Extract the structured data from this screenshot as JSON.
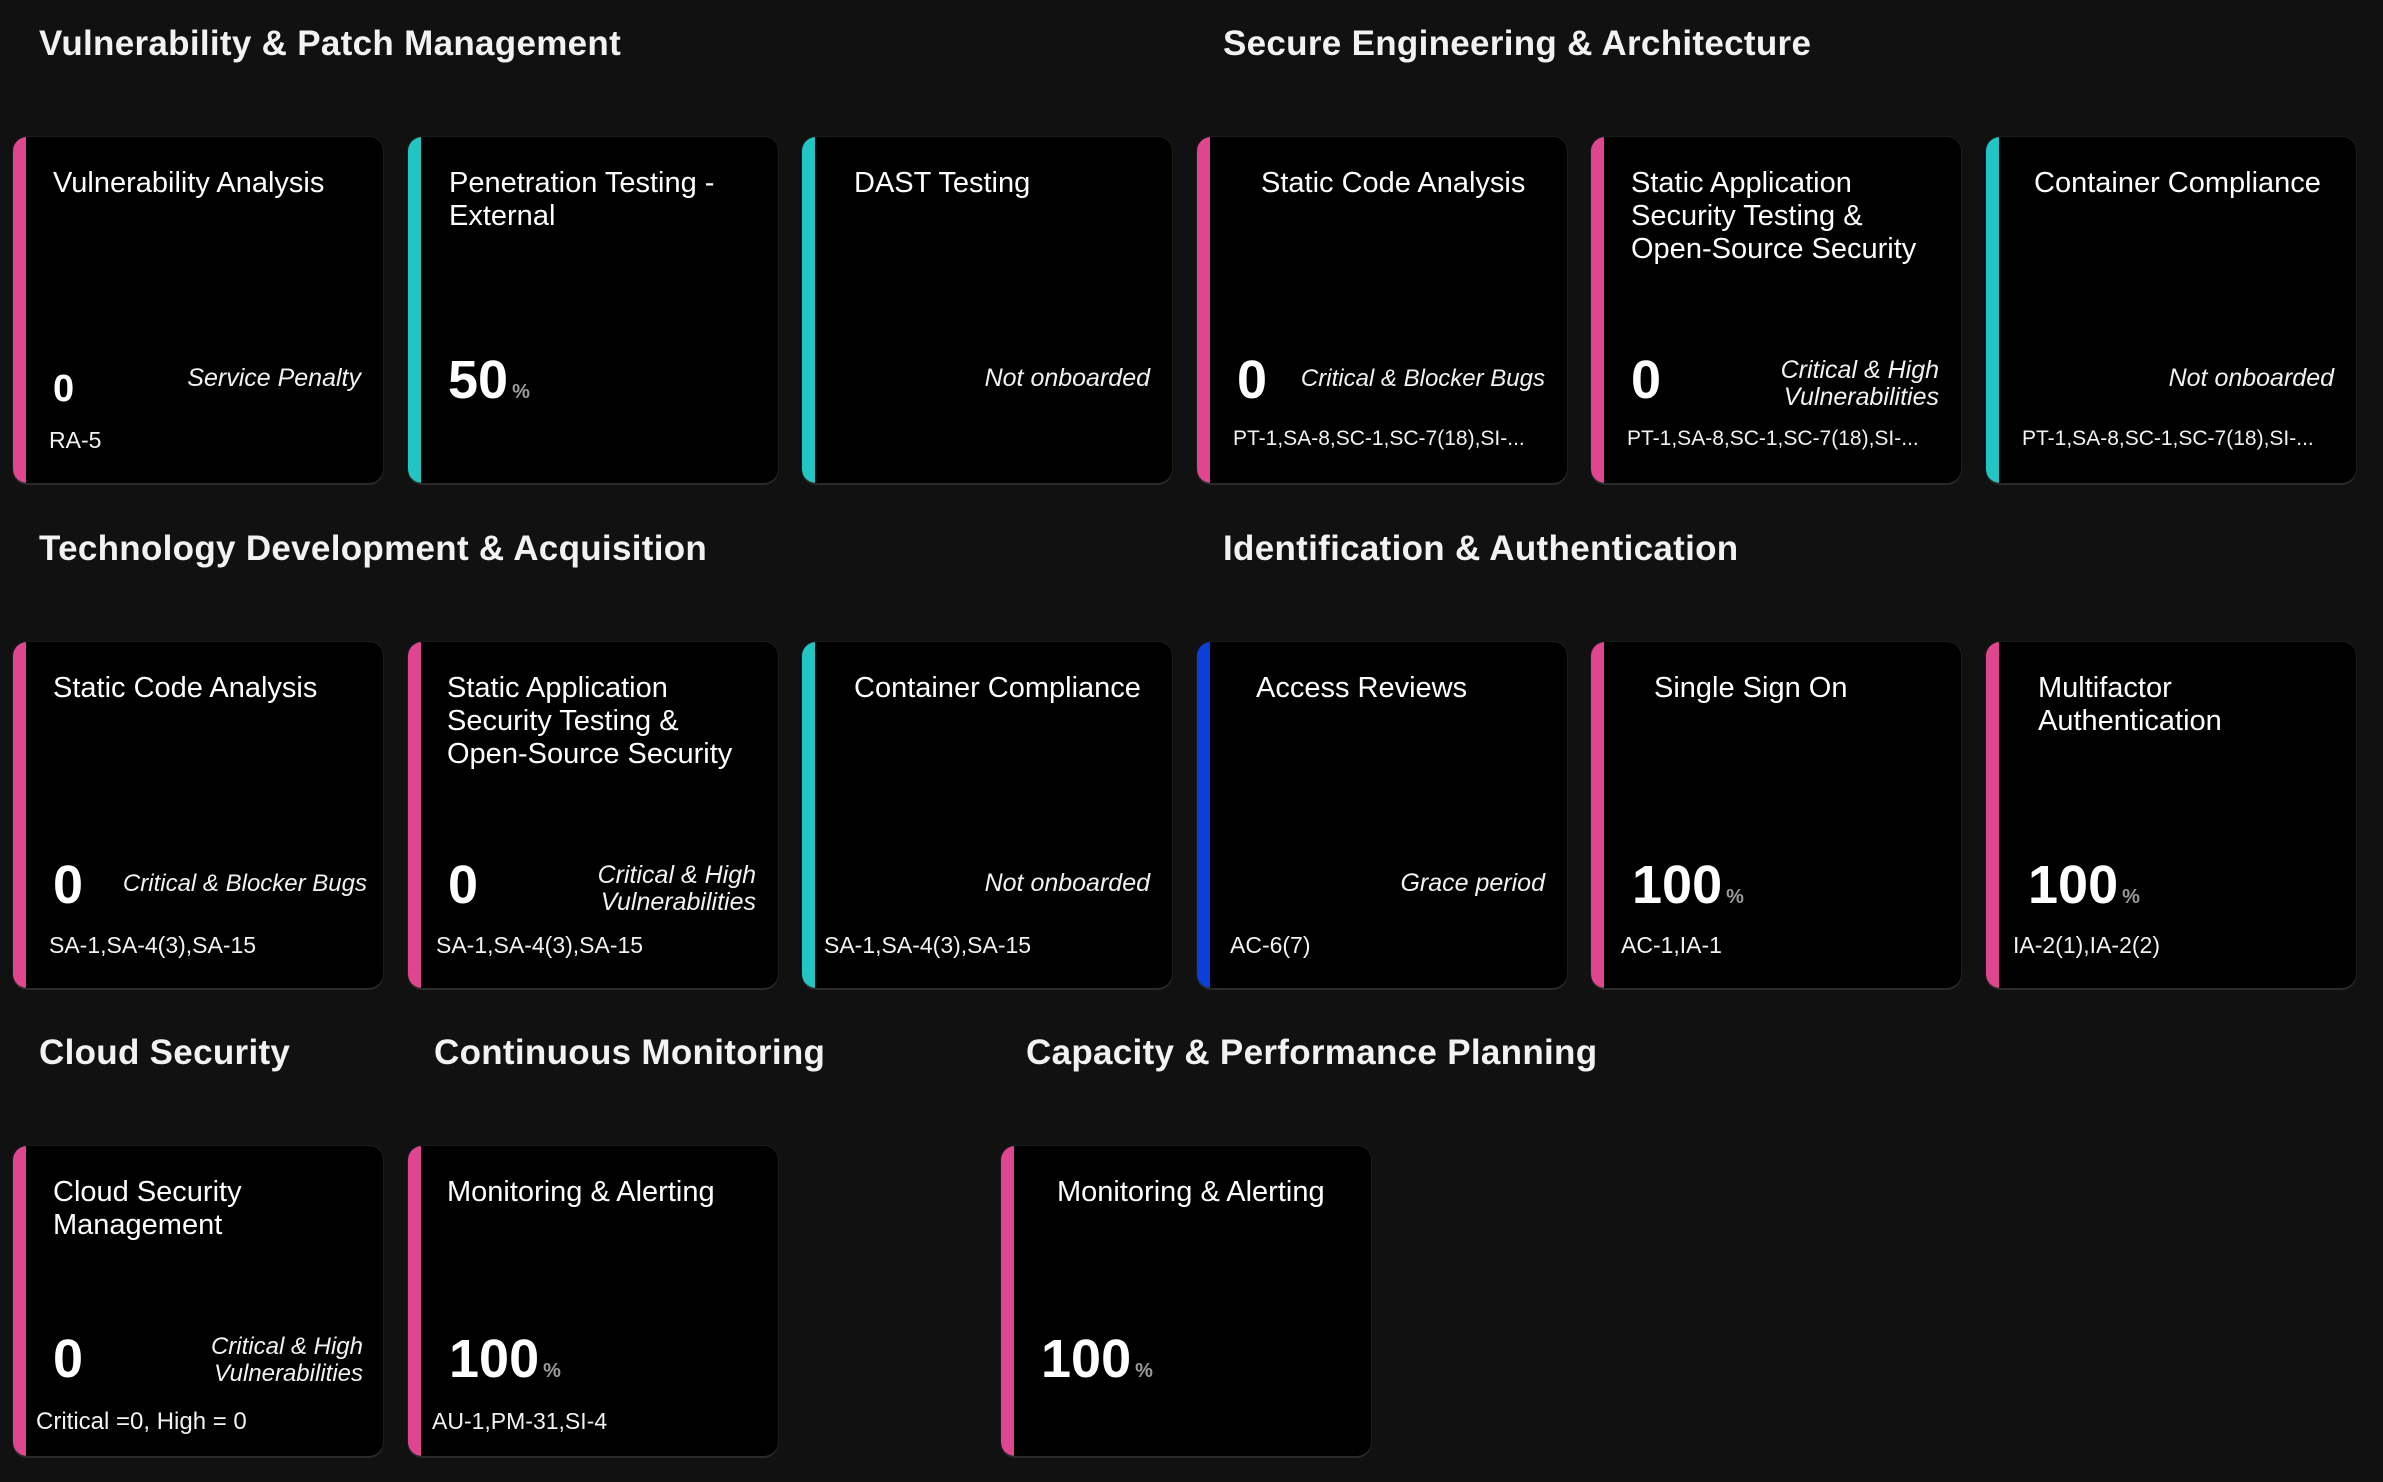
{
  "colors": {
    "pink": "#e0468f",
    "teal": "#22c4c4",
    "blue": "#0a3fd8",
    "background": "#111111",
    "card": "#000000"
  },
  "sections": {
    "vuln": "Vulnerability & Patch Management",
    "secure_eng": "Secure Engineering & Architecture",
    "tech_dev": "Technology Development & Acquisition",
    "ident": "Identification & Authentication",
    "cloud": "Cloud Security",
    "monitoring": "Continuous Monitoring",
    "capacity": "Capacity & Performance Planning"
  },
  "cards": {
    "c1": {
      "title": "Vulnerability Analysis",
      "value": "0",
      "status": "Service Penalty",
      "controls": "RA-5",
      "accent": "pink"
    },
    "c2": {
      "title": "Penetration Testing - External",
      "value": "50",
      "unit": "%",
      "controls": "",
      "accent": "teal"
    },
    "c3": {
      "title": "DAST Testing",
      "status": "Not onboarded",
      "controls": "",
      "accent": "teal"
    },
    "c4": {
      "title": "Static Code Analysis",
      "value": "0",
      "status": "Critical & Blocker Bugs",
      "controls": "PT-1,SA-8,SC-1,SC-7(18),SI-...",
      "accent": "pink"
    },
    "c5": {
      "title": "Static Application Security Testing & Open-Source Security",
      "value": "0",
      "status_line1": "Critical & High",
      "status_line2": "Vulnerabilities",
      "controls": "PT-1,SA-8,SC-1,SC-7(18),SI-...",
      "accent": "pink"
    },
    "c6": {
      "title": "Container Compliance",
      "status": "Not onboarded",
      "controls": "PT-1,SA-8,SC-1,SC-7(18),SI-...",
      "accent": "teal"
    },
    "c7": {
      "title": "Static Code Analysis",
      "value": "0",
      "status": "Critical & Blocker Bugs",
      "controls": "SA-1,SA-4(3),SA-15",
      "accent": "pink"
    },
    "c8": {
      "title": "Static Application Security Testing & Open-Source Security",
      "value": "0",
      "status_line1": "Critical & High",
      "status_line2": "Vulnerabilities",
      "controls": "SA-1,SA-4(3),SA-15",
      "accent": "pink"
    },
    "c9": {
      "title": "Container Compliance",
      "status": "Not onboarded",
      "controls": "SA-1,SA-4(3),SA-15",
      "accent": "teal"
    },
    "c10": {
      "title": "Access Reviews",
      "status": "Grace period",
      "controls": "AC-6(7)",
      "accent": "blue"
    },
    "c11": {
      "title": "Single Sign On",
      "value": "100",
      "unit": "%",
      "controls": "AC-1,IA-1",
      "accent": "pink"
    },
    "c12": {
      "title": "Multifactor Authentication",
      "value": "100",
      "unit": "%",
      "controls": "IA-2(1),IA-2(2)",
      "accent": "pink"
    },
    "c13": {
      "title": "Cloud Security Management",
      "value": "0",
      "status_line1": "Critical & High",
      "status_line2": "Vulnerabilities",
      "controls": "Critical =0, High = 0",
      "accent": "pink"
    },
    "c14": {
      "title": "Monitoring & Alerting",
      "value": "100",
      "unit": "%",
      "controls": "AU-1,PM-31,SI-4",
      "accent": "pink"
    },
    "c15": {
      "title": "Monitoring & Alerting",
      "value": "100",
      "unit": "%",
      "controls": "",
      "accent": "pink"
    }
  }
}
